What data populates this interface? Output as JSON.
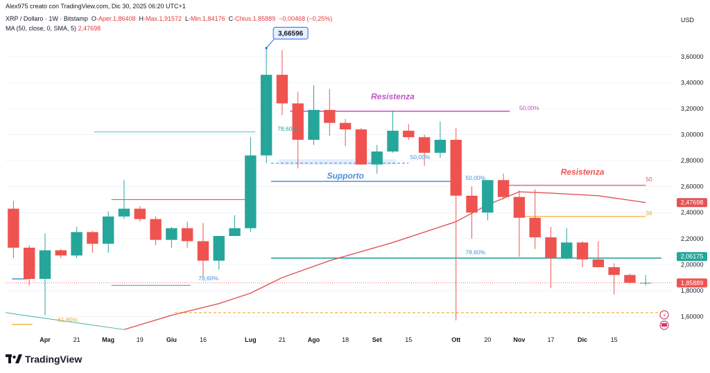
{
  "header": {
    "credit": "Alex975 creato con TradingView.com, Dic 30, 2025 06:20 UTC+1",
    "symbol": "XRP / Dollaro · 1W · Bitstamp",
    "open_label": "O",
    "open_value": "-Aper.1,86408",
    "high_label": "H",
    "high_value": "-Max.1,91572",
    "low_label": "L",
    "low_value": "-Min.1,84176",
    "close_label": "C",
    "close_value": "-Chius.1,85889",
    "change_value": "−0,00468 (−0,25%)",
    "ma_label": "MA (50, close, 0, SMA, 5)",
    "ma_value": "2,47698"
  },
  "logo": {
    "text": "TradingView",
    "icon": "tradingview-logo-icon"
  },
  "colors": {
    "up": "#26a69a",
    "down": "#ef5350",
    "ma": "#e25355",
    "support": "#4a90d9",
    "resistance": "#c157c1",
    "fib_green": "#26a69a",
    "fib_orange": "#f5a623"
  },
  "chart_data": {
    "type": "candlestick",
    "currency": "USD",
    "ylim": [
      1.48,
      3.78
    ],
    "y_ticks": [
      "3,60000",
      "3,40000",
      "3,20000",
      "3,00000",
      "2,80000",
      "2,60000",
      "2,40000",
      "2,20000",
      "2,00000",
      "1,80000",
      "1,60000"
    ],
    "y_tick_values": [
      3.6,
      3.4,
      3.2,
      3.0,
      2.8,
      2.6,
      2.4,
      2.2,
      2.0,
      1.8,
      1.6
    ],
    "x_labels": [
      {
        "i": 2,
        "label": "Apr"
      },
      {
        "i": 4,
        "label": "21"
      },
      {
        "i": 6,
        "label": "Mag"
      },
      {
        "i": 8,
        "label": "19"
      },
      {
        "i": 10,
        "label": "Giu"
      },
      {
        "i": 12,
        "label": "16"
      },
      {
        "i": 15,
        "label": "Lug"
      },
      {
        "i": 17,
        "label": "21"
      },
      {
        "i": 19,
        "label": "Ago"
      },
      {
        "i": 21,
        "label": "18"
      },
      {
        "i": 23,
        "label": "Set"
      },
      {
        "i": 25,
        "label": "15"
      },
      {
        "i": 28,
        "label": "Ott"
      },
      {
        "i": 30,
        "label": "20"
      },
      {
        "i": 32,
        "label": "Nov"
      },
      {
        "i": 34,
        "label": "17"
      },
      {
        "i": 36,
        "label": "Dic"
      },
      {
        "i": 38,
        "label": "15"
      }
    ],
    "candles": [
      {
        "o": 2.43,
        "h": 2.49,
        "l": 2.05,
        "c": 2.13
      },
      {
        "o": 2.13,
        "h": 2.15,
        "l": 1.84,
        "c": 1.89
      },
      {
        "o": 1.89,
        "h": 2.24,
        "l": 1.61,
        "c": 2.11
      },
      {
        "o": 2.11,
        "h": 2.12,
        "l": 2.05,
        "c": 2.07
      },
      {
        "o": 2.07,
        "h": 2.29,
        "l": 2.05,
        "c": 2.25
      },
      {
        "o": 2.25,
        "h": 2.26,
        "l": 2.09,
        "c": 2.16
      },
      {
        "o": 2.16,
        "h": 2.41,
        "l": 2.09,
        "c": 2.37
      },
      {
        "o": 2.37,
        "h": 2.65,
        "l": 2.35,
        "c": 2.43
      },
      {
        "o": 2.43,
        "h": 2.45,
        "l": 2.33,
        "c": 2.35
      },
      {
        "o": 2.35,
        "h": 2.37,
        "l": 2.15,
        "c": 2.19
      },
      {
        "o": 2.19,
        "h": 2.29,
        "l": 2.13,
        "c": 2.28
      },
      {
        "o": 2.28,
        "h": 2.33,
        "l": 2.13,
        "c": 2.18
      },
      {
        "o": 2.18,
        "h": 2.32,
        "l": 1.91,
        "c": 2.03
      },
      {
        "o": 2.03,
        "h": 2.22,
        "l": 1.96,
        "c": 2.22
      },
      {
        "o": 2.22,
        "h": 2.38,
        "l": 2.22,
        "c": 2.28
      },
      {
        "o": 2.28,
        "h": 2.98,
        "l": 2.25,
        "c": 2.84
      },
      {
        "o": 2.84,
        "h": 3.67,
        "l": 2.78,
        "c": 3.46
      },
      {
        "o": 3.46,
        "h": 3.65,
        "l": 3.15,
        "c": 3.24
      },
      {
        "o": 3.24,
        "h": 3.33,
        "l": 2.74,
        "c": 2.96
      },
      {
        "o": 2.96,
        "h": 3.38,
        "l": 2.92,
        "c": 3.19
      },
      {
        "o": 3.19,
        "h": 3.35,
        "l": 2.99,
        "c": 3.09
      },
      {
        "o": 3.09,
        "h": 3.12,
        "l": 2.91,
        "c": 3.04
      },
      {
        "o": 3.04,
        "h": 3.05,
        "l": 2.77,
        "c": 2.77
      },
      {
        "o": 2.77,
        "h": 2.92,
        "l": 2.7,
        "c": 2.87
      },
      {
        "o": 2.87,
        "h": 3.18,
        "l": 2.86,
        "c": 3.03
      },
      {
        "o": 3.03,
        "h": 3.08,
        "l": 2.96,
        "c": 2.98
      },
      {
        "o": 2.98,
        "h": 3.0,
        "l": 2.76,
        "c": 2.86
      },
      {
        "o": 2.86,
        "h": 3.1,
        "l": 2.82,
        "c": 2.96
      },
      {
        "o": 2.96,
        "h": 3.05,
        "l": 1.57,
        "c": 2.53
      },
      {
        "o": 2.53,
        "h": 2.6,
        "l": 2.2,
        "c": 2.4
      },
      {
        "o": 2.4,
        "h": 2.65,
        "l": 2.34,
        "c": 2.65
      },
      {
        "o": 2.65,
        "h": 2.7,
        "l": 2.5,
        "c": 2.52
      },
      {
        "o": 2.52,
        "h": 2.57,
        "l": 2.06,
        "c": 2.36
      },
      {
        "o": 2.36,
        "h": 2.58,
        "l": 2.12,
        "c": 2.21
      },
      {
        "o": 2.21,
        "h": 2.29,
        "l": 1.82,
        "c": 2.05
      },
      {
        "o": 2.05,
        "h": 2.28,
        "l": 2.04,
        "c": 2.17
      },
      {
        "o": 2.17,
        "h": 2.18,
        "l": 1.98,
        "c": 2.04
      },
      {
        "o": 2.04,
        "h": 2.18,
        "l": 1.98,
        "c": 1.98
      },
      {
        "o": 1.98,
        "h": 2.01,
        "l": 1.77,
        "c": 1.92
      },
      {
        "o": 1.92,
        "h": 1.93,
        "l": 1.85,
        "c": 1.86
      },
      {
        "o": 1.86,
        "h": 1.92,
        "l": 1.84,
        "c": 1.86
      }
    ],
    "ma50": [
      {
        "i": 7,
        "v": 1.5
      },
      {
        "i": 10,
        "v": 1.61
      },
      {
        "i": 13,
        "v": 1.7
      },
      {
        "i": 15,
        "v": 1.78
      },
      {
        "i": 17,
        "v": 1.9
      },
      {
        "i": 20,
        "v": 2.03
      },
      {
        "i": 24,
        "v": 2.17
      },
      {
        "i": 28,
        "v": 2.33
      },
      {
        "i": 30,
        "v": 2.46
      },
      {
        "i": 32,
        "v": 2.56
      },
      {
        "i": 34,
        "v": 2.55
      },
      {
        "i": 37,
        "v": 2.53
      },
      {
        "i": 40,
        "v": 2.477
      }
    ],
    "last_price": "1,85889",
    "last_price_value": 1.8589,
    "ma_last": "2,47698",
    "ma_last_value": 2.477,
    "level_tag": "2,06175",
    "level_tag_value": 2.0618,
    "high_callout": "3,66596",
    "high_callout_value": 3.666,
    "annotations": [
      {
        "text": "Resistenza",
        "x": 24,
        "y": 3.24,
        "kind": "resistance"
      },
      {
        "text": "Supporto",
        "x": 21,
        "y": 2.63,
        "kind": "support"
      },
      {
        "text": "Resistenza",
        "x": 36,
        "y": 2.66,
        "kind": "resistance-red"
      }
    ],
    "fib_labels": [
      {
        "text": "78,60%",
        "x": 16.7,
        "y": 3.03,
        "color": "#26a69a"
      },
      {
        "text": "50,00%",
        "x": 32.0,
        "y": 3.19,
        "color": "#c157c1"
      },
      {
        "text": "50,00%",
        "x": 25.1,
        "y": 2.81,
        "color": "#4a90d9"
      },
      {
        "text": "50,00%",
        "x": 28.6,
        "y": 2.65,
        "color": "#4a90d9"
      },
      {
        "text": "78,60%",
        "x": 11.7,
        "y": 1.88,
        "color": "#4a90d9"
      },
      {
        "text": "78,60%",
        "x": 28.6,
        "y": 2.08,
        "color": "#4a90d9"
      },
      {
        "text": "61,80%",
        "x": 2.8,
        "y": 1.56,
        "color": "#f5a623"
      },
      {
        "text": "50",
        "x": 40.0,
        "y": 2.64,
        "color": "#e25355"
      },
      {
        "text": "38",
        "x": 40.0,
        "y": 2.38,
        "color": "#f5a623"
      }
    ],
    "levels": [
      {
        "x1": 5.1,
        "x2": 15.3,
        "y": 3.02,
        "color": "#26a69a",
        "w": 0.8
      },
      {
        "x1": 6.2,
        "x2": 14.8,
        "y": 2.5,
        "color": "#ef5350",
        "w": 1.2
      },
      {
        "x1": -0.1,
        "x2": 0.9,
        "y": 1.89,
        "color": "#4a90d9",
        "w": 1.6
      },
      {
        "x1": 6.2,
        "x2": 11.2,
        "y": 1.84,
        "color": "#4a90d9",
        "w": 1.0
      },
      {
        "x1": -0.1,
        "x2": 1.2,
        "y": 1.54,
        "color": "#f5a623",
        "w": 1.2
      },
      {
        "x1": 17.5,
        "x2": 31.4,
        "y": 3.18,
        "color": "#c157c1",
        "w": 1.6
      },
      {
        "x1": 16.3,
        "x2": 28.0,
        "y": 2.64,
        "color": "#4a90d9",
        "w": 1.6
      },
      {
        "x1": 31.3,
        "x2": 40.0,
        "y": 2.61,
        "color": "#ef5350",
        "w": 1.2
      },
      {
        "x1": 32.3,
        "x2": 40.0,
        "y": 2.37,
        "color": "#f5a623",
        "w": 1.2
      },
      {
        "x1": 16.3,
        "x2": 41.0,
        "y": 2.05,
        "color": "#26a69a",
        "w": 1.6
      }
    ],
    "dashed_levels": [
      {
        "x1": 16.3,
        "x2": 25.0,
        "y": 2.78,
        "color": "#4a90d9"
      },
      {
        "x1": 10.2,
        "x2": 41.0,
        "y": 1.63,
        "color": "#f5a623"
      }
    ],
    "zone": {
      "x1": 16.8,
      "x2": 24.2,
      "y1": 2.81,
      "y2": 2.77
    }
  }
}
